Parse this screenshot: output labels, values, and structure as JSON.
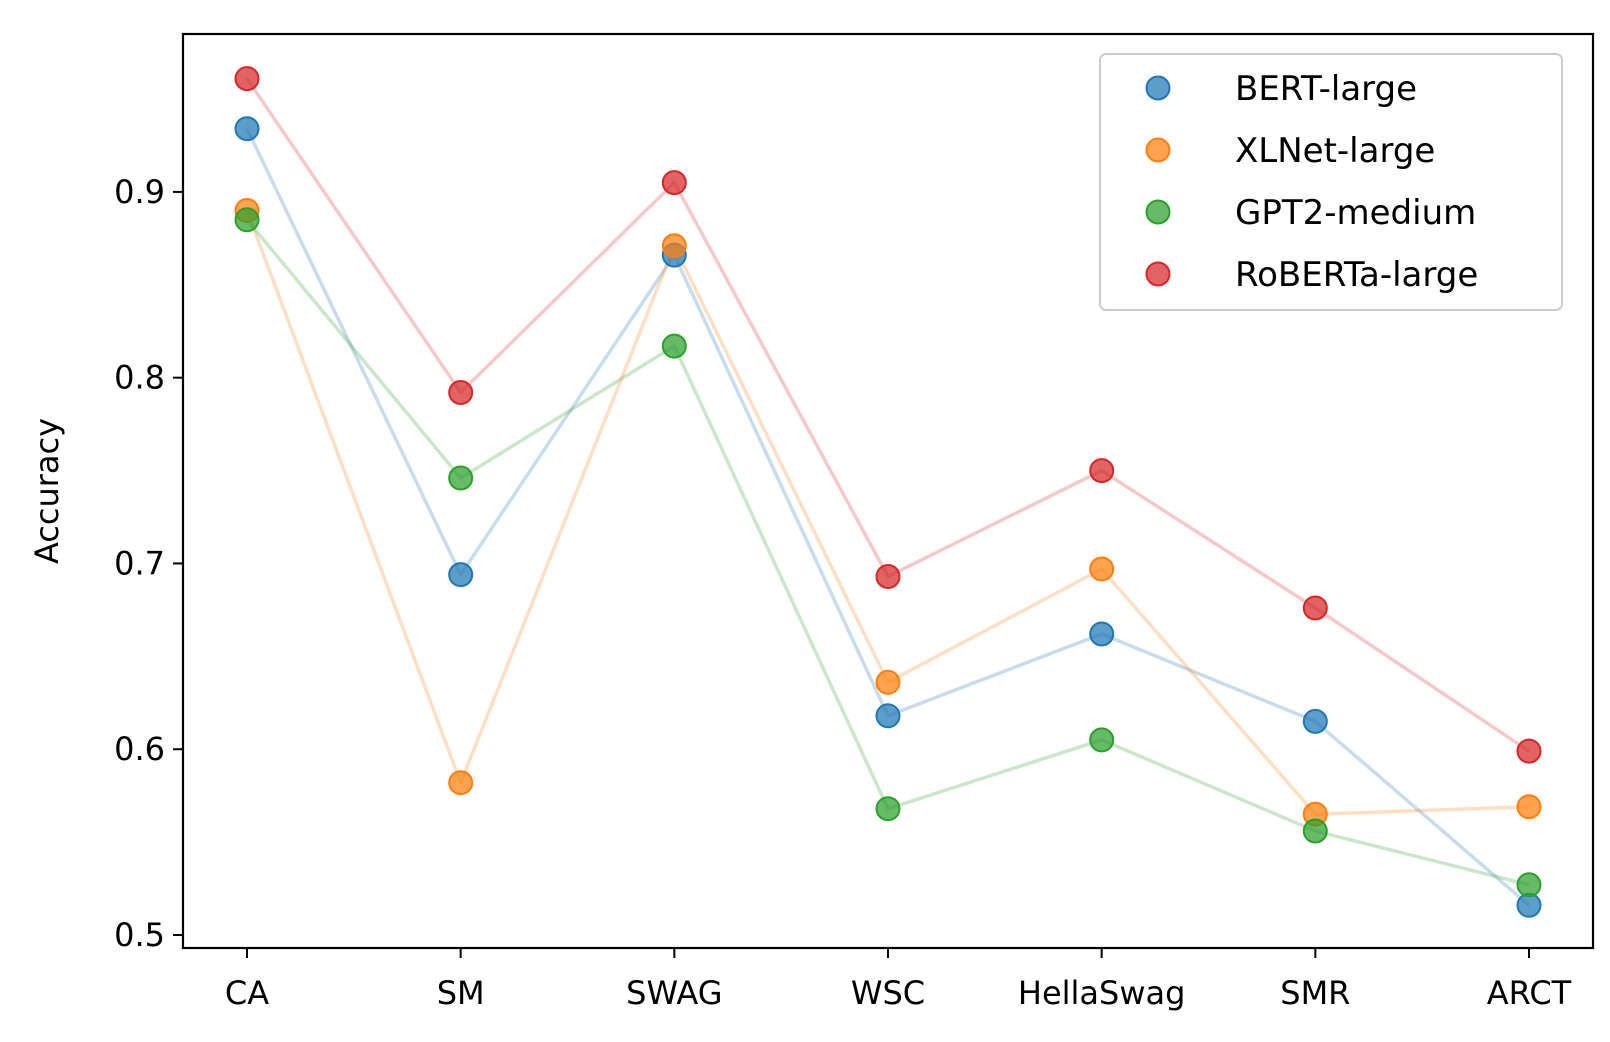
{
  "chart_data": {
    "type": "line",
    "title": "",
    "xlabel": "",
    "ylabel": "Accuracy",
    "categories": [
      "CA",
      "SM",
      "SWAG",
      "WSC",
      "HellaSwag",
      "SMR",
      "ARCT"
    ],
    "ylim": [
      0.493,
      0.985
    ],
    "yticks": [
      0.5,
      0.6,
      0.7,
      0.8,
      0.9
    ],
    "ytick_labels": [
      "0.5",
      "0.6",
      "0.7",
      "0.8",
      "0.9"
    ],
    "legend_position": "top-right",
    "grid": false,
    "series": [
      {
        "name": "BERT-large",
        "color": "#1f77b4",
        "values": [
          0.934,
          0.694,
          0.866,
          0.618,
          0.662,
          0.615,
          0.516
        ]
      },
      {
        "name": "XLNet-large",
        "color": "#ff7f0e",
        "values": [
          0.89,
          0.582,
          0.871,
          0.636,
          0.697,
          0.565,
          0.569
        ]
      },
      {
        "name": "GPT2-medium",
        "color": "#2ca02c",
        "values": [
          0.885,
          0.746,
          0.817,
          0.568,
          0.605,
          0.556,
          0.527
        ]
      },
      {
        "name": "RoBERTa-large",
        "color": "#d62728",
        "values": [
          0.961,
          0.792,
          0.905,
          0.693,
          0.75,
          0.676,
          0.599
        ]
      }
    ]
  }
}
